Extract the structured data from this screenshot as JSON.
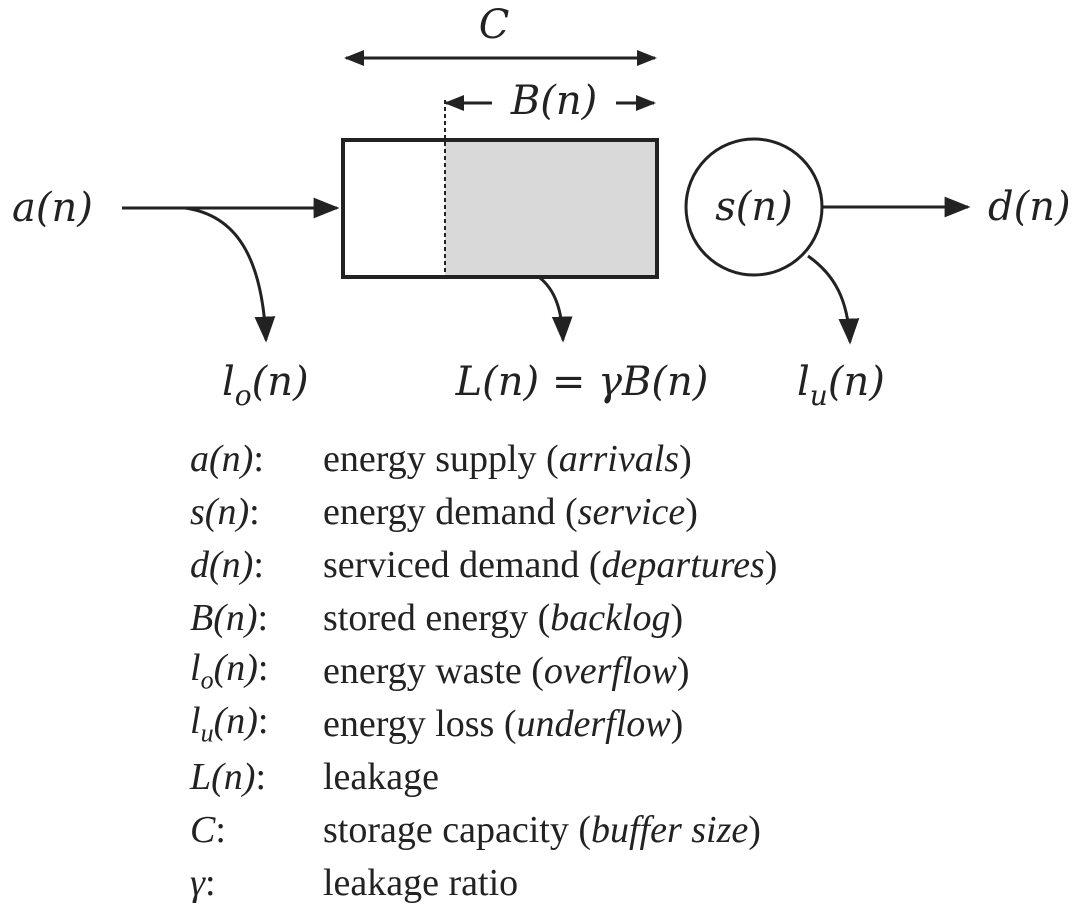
{
  "diagram": {
    "labels": {
      "capacity": "C",
      "backlog": "B(n)",
      "arrivals": "a(n)",
      "service": "s(n)",
      "departures": "d(n)",
      "overflow": "l_o(n)",
      "leakage": "L(n) = γB(n)",
      "underflow": "l_u(n)"
    }
  },
  "legend": [
    {
      "symbol": "a(n)",
      "desc": "energy supply",
      "term": "arrivals"
    },
    {
      "symbol": "s(n)",
      "desc": "energy demand",
      "term": "service"
    },
    {
      "symbol": "d(n)",
      "desc": "serviced demand",
      "term": "departures"
    },
    {
      "symbol": "B(n)",
      "desc": "stored energy",
      "term": "backlog"
    },
    {
      "symbol": "l_o(n)",
      "desc": "energy waste",
      "term": "overflow"
    },
    {
      "symbol": "l_u(n)",
      "desc": "energy loss",
      "term": "underflow"
    },
    {
      "symbol": "L(n)",
      "desc": "leakage",
      "term": ""
    },
    {
      "symbol": "C",
      "desc": "storage capacity",
      "term": "buffer size"
    },
    {
      "symbol": "γ",
      "desc": "leakage ratio",
      "term": ""
    }
  ],
  "colors": {
    "stroke": "#222222",
    "backlog_fill": "#d9d9da"
  }
}
